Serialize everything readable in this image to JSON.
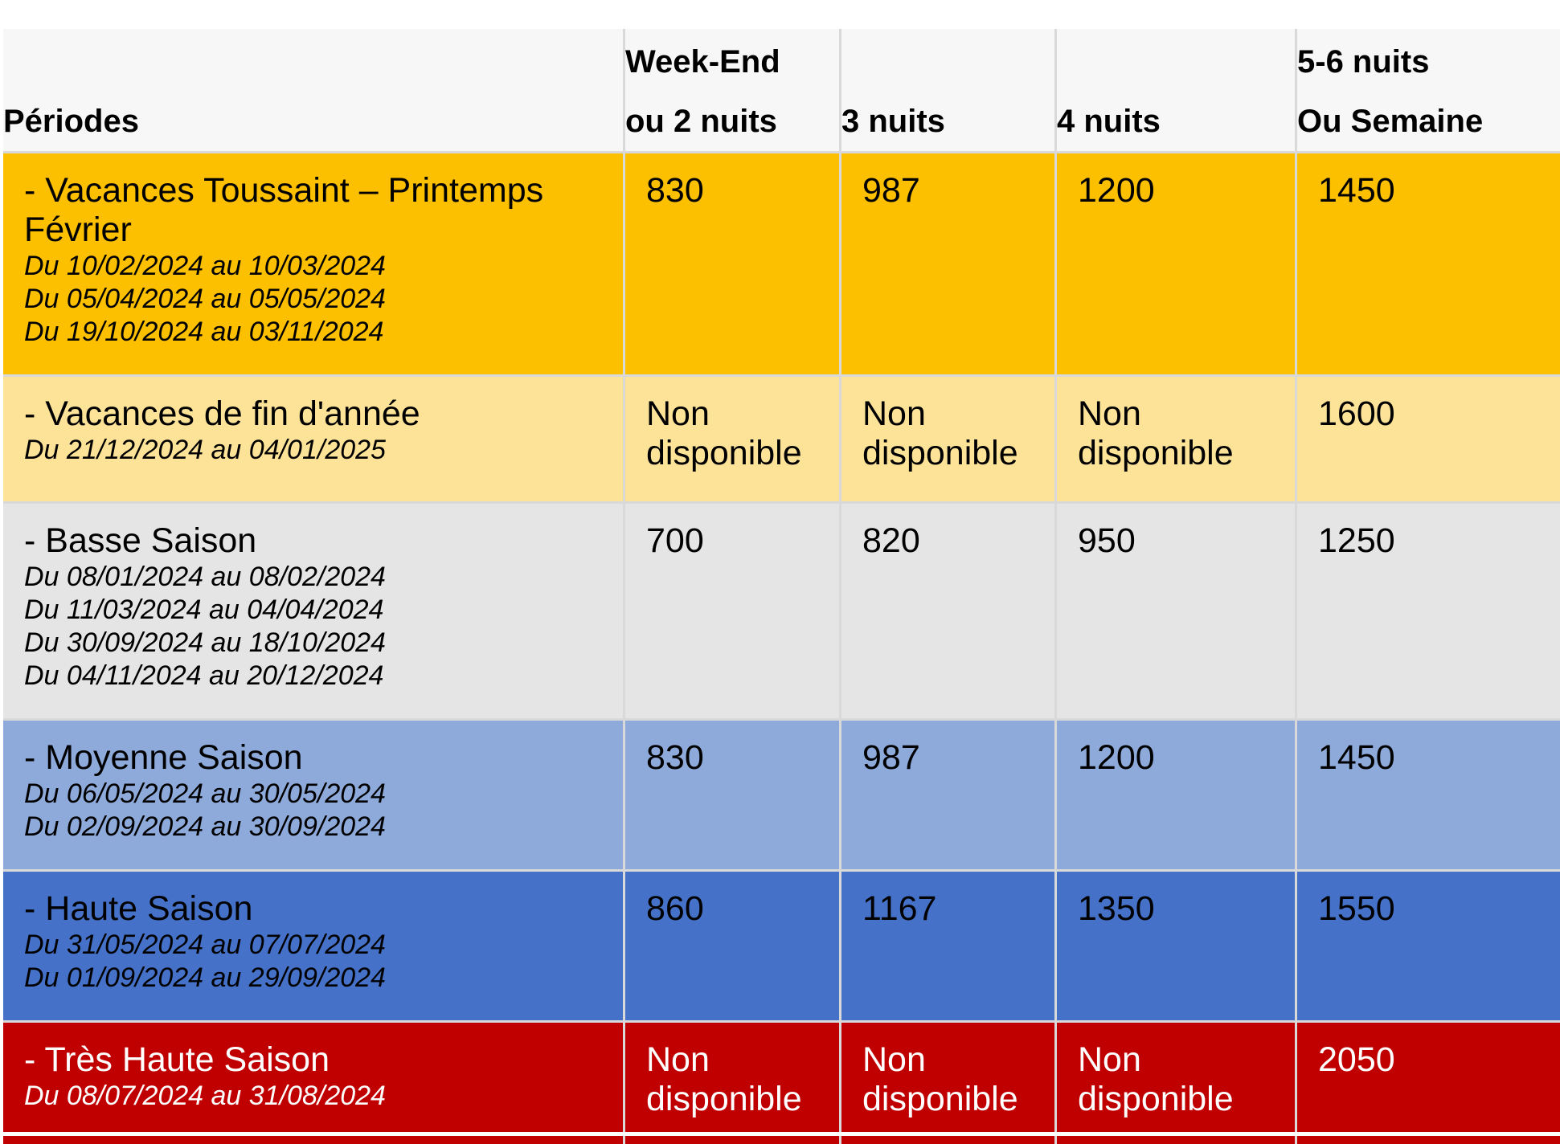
{
  "header": {
    "col1": [
      "Périodes"
    ],
    "col2": [
      "Week-End",
      "ou 2 nuits"
    ],
    "col3": [
      "3 nuits"
    ],
    "col4": [
      "4 nuits"
    ],
    "col5": [
      "5-6 nuits",
      "Ou Semaine"
    ]
  },
  "rows": [
    {
      "title": "- Vacances Toussaint – Printemps Février",
      "dates": [
        "Du 10/02/2024 au 10/03/2024",
        "Du 05/04/2024 au 05/05/2024",
        "Du 19/10/2024 au 03/11/2024"
      ],
      "prices": [
        "830",
        "987",
        "1200",
        "1450"
      ],
      "color": "#fcc000"
    },
    {
      "title": " - Vacances de fin d'année",
      "dates": [
        "Du 21/12/2024 au 04/01/2025"
      ],
      "prices": [
        "Non disponible",
        "Non disponible",
        "Non disponible",
        "1600"
      ],
      "color": "#fde398"
    },
    {
      "title": " - Basse Saison",
      "dates": [
        "Du 08/01/2024 au 08/02/2024",
        "Du 11/03/2024 au 04/04/2024",
        "Du 30/09/2024 au 18/10/2024",
        "Du 04/11/2024 au 20/12/2024"
      ],
      "prices": [
        "700",
        "820",
        "950",
        "1250"
      ],
      "color": "#e5e5e5"
    },
    {
      "title": " - Moyenne Saison",
      "dates": [
        "Du 06/05/2024 au 30/05/2024",
        "Du 02/09/2024 au 30/09/2024"
      ],
      "prices": [
        "830",
        "987",
        "1200",
        "1450"
      ],
      "color": "#8eaadb"
    },
    {
      "title": "- Haute Saison",
      "dates": [
        "Du 31/05/2024 au 07/07/2024",
        "Du 01/09/2024 au 29/09/2024"
      ],
      "prices": [
        "860",
        "1167",
        "1350",
        "1550"
      ],
      "color": "#4572c8"
    },
    {
      "title": " - Très Haute Saison",
      "dates": [
        "Du 08/07/2024 au 31/08/2024"
      ],
      "prices": [
        "Non disponible",
        "Non disponible",
        "Non disponible",
        "2050"
      ],
      "color": "#c00000"
    }
  ]
}
